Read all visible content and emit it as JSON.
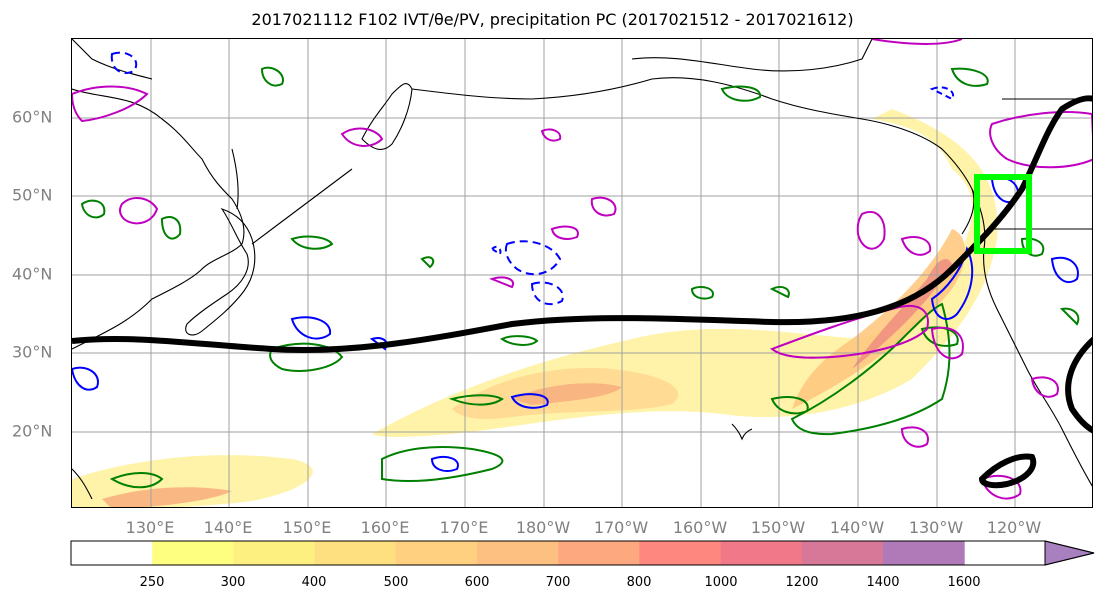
{
  "title": "2017021112 F102 IVT/θe/PV, precipitation PC (2017021512 - 2017021612)",
  "lat_labels": [
    "60°N",
    "50°N",
    "40°N",
    "30°N",
    "20°N"
  ],
  "lon_labels": [
    "130°E",
    "140°E",
    "150°E",
    "160°E",
    "170°E",
    "180°W",
    "170°W",
    "160°W",
    "150°W",
    "140°W",
    "130°W",
    "120°W"
  ],
  "colorbar": {
    "ticks": [
      "250",
      "300",
      "400",
      "500",
      "600",
      "700",
      "800",
      "1000",
      "1200",
      "1400",
      "1600"
    ],
    "colors": [
      "#ffffff",
      "#fefe80",
      "#fef080",
      "#fee080",
      "#fed080",
      "#fec080",
      "#fea880",
      "#fe8880",
      "#f07888",
      "#d87898",
      "#b07ab8",
      "#a880c0"
    ]
  },
  "colors": {
    "ivt_low": "#fff2a0",
    "ivt_mid": "#ffd080",
    "ivt_high": "#f09080",
    "contour_black": "#000000",
    "contour_green": "#008000",
    "contour_blue": "#0000ff",
    "contour_magenta": "#c000c0",
    "box": "#00ff00",
    "grid": "#a0a0a0",
    "tick_label": "#808080"
  },
  "map_extent": {
    "lon_min": 120,
    "lon_max": 250,
    "lat_min": 10,
    "lat_max": 70
  }
}
